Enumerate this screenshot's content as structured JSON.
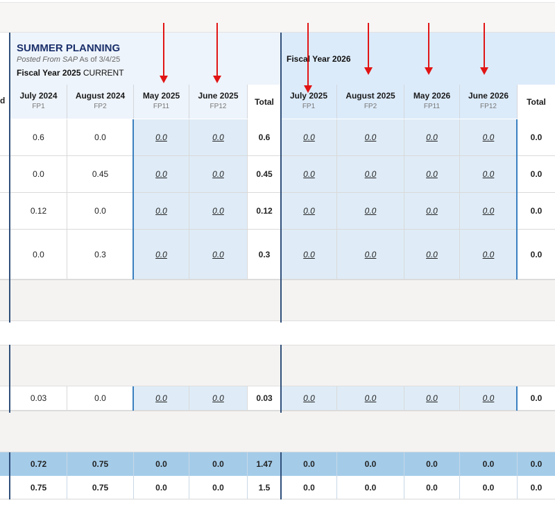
{
  "header": {
    "title": "SUMMER PLANNING",
    "posted_prefix": "Posted From SAP",
    "posted_suffix": " As of 3/4/25",
    "fy_current_bold": "Fiscal Year 2025",
    "fy_current_tag": " CURRENT",
    "fy_next": "Fiscal Year 2026",
    "edge_label": "d"
  },
  "columns_fy25": [
    {
      "month": "July 2024",
      "fp": "FP1"
    },
    {
      "month": "August 2024",
      "fp": "FP2"
    },
    {
      "month": "May 2025",
      "fp": "FP11"
    },
    {
      "month": "June 2025",
      "fp": "FP12"
    }
  ],
  "columns_fy26": [
    {
      "month": "July 2025",
      "fp": "FP1"
    },
    {
      "month": "August 2025",
      "fp": "FP2"
    },
    {
      "month": "May 2026",
      "fp": "FP11"
    },
    {
      "month": "June 2026",
      "fp": "FP12"
    }
  ],
  "total_label": "Total",
  "rows": [
    [
      "0.6",
      "0.0",
      "0.0",
      "0.0",
      "0.6",
      "0.0",
      "0.0",
      "0.0",
      "0.0",
      "0.0"
    ],
    [
      "0.0",
      "0.45",
      "0.0",
      "0.0",
      "0.45",
      "0.0",
      "0.0",
      "0.0",
      "0.0",
      "0.0"
    ],
    [
      "0.12",
      "0.0",
      "0.0",
      "0.0",
      "0.12",
      "0.0",
      "0.0",
      "0.0",
      "0.0",
      "0.0"
    ],
    [
      "0.0",
      "0.3",
      "0.0",
      "0.0",
      "0.3",
      "0.0",
      "0.0",
      "0.0",
      "0.0",
      "0.0"
    ],
    [
      "0.03",
      "0.0",
      "0.0",
      "0.0",
      "0.03",
      "0.0",
      "0.0",
      "0.0",
      "0.0",
      "0.0"
    ]
  ],
  "summary": [
    [
      "0.72",
      "0.75",
      "0.0",
      "0.0",
      "1.47",
      "0.0",
      "0.0",
      "0.0",
      "0.0",
      "0.0"
    ],
    [
      "0.75",
      "0.75",
      "0.0",
      "0.0",
      "1.5",
      "0.0",
      "0.0",
      "0.0",
      "0.0",
      "0.0"
    ]
  ],
  "colors": {
    "arrow": "#e11414",
    "input_cell_bg": "#dfecf7",
    "summary_bg": "#a4cce9",
    "title": "#1a2f6b"
  }
}
